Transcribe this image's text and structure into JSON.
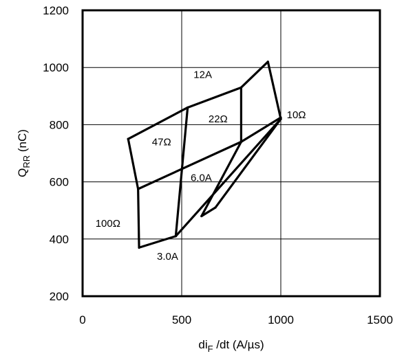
{
  "chart_data": {
    "type": "line",
    "title": "",
    "xlabel": {
      "main": "di",
      "sub": "F",
      "rest": " /dt (A/µs)"
    },
    "ylabel": {
      "main": "Q",
      "sub": "RR",
      "rest": " (nC)"
    },
    "xlim": [
      0,
      1500
    ],
    "ylim": [
      200,
      1200
    ],
    "xticks": [
      0,
      500,
      1000,
      1500
    ],
    "yticks": [
      200,
      400,
      600,
      800,
      1000,
      1200
    ],
    "xtick_labels": [
      "0",
      "500",
      "1000",
      "1500"
    ],
    "ytick_labels": [
      "200",
      "400",
      "600",
      "800",
      "1000",
      "1200"
    ],
    "grid": true,
    "series": [
      {
        "name": "12A",
        "x": [
          230,
          530,
          800,
          935,
          1000
        ],
        "y": [
          750,
          860,
          930,
          1020,
          820
        ]
      },
      {
        "name": "6.0A",
        "x": [
          280,
          800,
          1000
        ],
        "y": [
          575,
          740,
          825
        ]
      },
      {
        "name": "3.0A",
        "x": [
          285,
          470,
          1000
        ],
        "y": [
          370,
          410,
          820
        ]
      },
      {
        "name": "100Ω",
        "x": [
          230,
          280,
          285
        ],
        "y": [
          750,
          575,
          370
        ]
      },
      {
        "name": "47Ω",
        "x": [
          530,
          470
        ],
        "y": [
          860,
          410
        ]
      },
      {
        "name": "22Ω",
        "x": [
          800,
          800,
          600,
          670,
          1000
        ],
        "y": [
          930,
          740,
          480,
          510,
          820
        ]
      }
    ],
    "annotations": [
      {
        "text": "12A",
        "x": 560,
        "y": 975
      },
      {
        "text": "10Ω",
        "x": 1030,
        "y": 835
      },
      {
        "text": "22Ω",
        "x": 635,
        "y": 820
      },
      {
        "text": "47Ω",
        "x": 350,
        "y": 740
      },
      {
        "text": "6.0A",
        "x": 545,
        "y": 615
      },
      {
        "text": "100Ω",
        "x": 65,
        "y": 455
      },
      {
        "text": "3.0A",
        "x": 375,
        "y": 340
      }
    ]
  }
}
